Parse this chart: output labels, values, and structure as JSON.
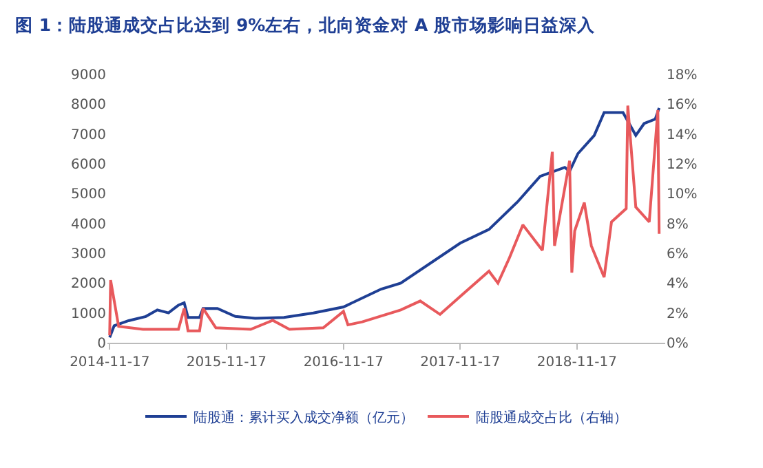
{
  "chart_data": {
    "type": "line",
    "title": "图 1：陆股通成交占比达到 9%左右，北向资金对 A 股市场影响日益深入",
    "xlim": [
      "2014-11-10",
      "2019-08-20"
    ],
    "xticks": [
      {
        "value": "2014-11-17",
        "label": "2014-11-17"
      },
      {
        "value": "2015-11-17",
        "label": "2015-11-17"
      },
      {
        "value": "2016-11-17",
        "label": "2016-11-17"
      },
      {
        "value": "2017-11-17",
        "label": "2017-11-17"
      },
      {
        "value": "2018-11-17",
        "label": "2018-11-17"
      }
    ],
    "ylim": [
      0,
      9000
    ],
    "yticks": [
      0,
      1000,
      2000,
      3000,
      4000,
      5000,
      6000,
      7000,
      8000,
      9000
    ],
    "y2lim": [
      0,
      18
    ],
    "y2ticks": [
      {
        "value": 0,
        "label": "0%"
      },
      {
        "value": 2,
        "label": "2%"
      },
      {
        "value": 4,
        "label": "4%"
      },
      {
        "value": 6,
        "label": "6%"
      },
      {
        "value": 8,
        "label": "8%"
      },
      {
        "value": 10,
        "label": "10%"
      },
      {
        "value": 12,
        "label": "12%"
      },
      {
        "value": 14,
        "label": "14%"
      },
      {
        "value": 16,
        "label": "16%"
      },
      {
        "value": 18,
        "label": "18%"
      }
    ],
    "legend": "bottom",
    "marker": "none",
    "line_style": "solid",
    "series": [
      {
        "name": "陆股通：累计买入成交净额（亿元）",
        "color": "#1f3f94",
        "x": [
          "2014-11-17",
          "2014-12-01",
          "2015-01-15",
          "2015-03-10",
          "2015-04-15",
          "2015-05-20",
          "2015-06-20",
          "2015-07-08",
          "2015-07-20",
          "2015-08-25",
          "2015-09-05",
          "2015-10-20",
          "2015-12-15",
          "2016-02-15",
          "2016-05-15",
          "2016-08-15",
          "2016-11-17",
          "2017-01-15",
          "2017-03-15",
          "2017-05-15",
          "2017-11-17",
          "2018-02-15",
          "2018-05-15",
          "2018-07-25",
          "2018-10-10",
          "2018-10-25",
          "2018-11-20",
          "2019-01-10",
          "2019-02-10",
          "2019-04-10",
          "2019-05-20",
          "2019-06-15",
          "2019-07-20",
          "2019-08-01"
        ],
        "values": [
          180,
          570,
          740,
          880,
          1100,
          1000,
          1260,
          1340,
          850,
          850,
          1150,
          1150,
          880,
          820,
          850,
          1000,
          1200,
          1500,
          1800,
          2000,
          3340,
          3800,
          4720,
          5580,
          5880,
          5750,
          6340,
          6950,
          7720,
          7720,
          6950,
          7350,
          7500,
          7870
        ]
      },
      {
        "name": "陆股通成交占比（右轴）",
        "color": "#e8595c",
        "axis": "y2",
        "x": [
          "2014-11-17",
          "2014-11-20",
          "2014-12-15",
          "2015-03-01",
          "2015-06-20",
          "2015-07-08",
          "2015-07-20",
          "2015-08-25",
          "2015-09-05",
          "2015-10-15",
          "2016-02-01",
          "2016-04-10",
          "2016-06-01",
          "2016-09-15",
          "2016-11-17",
          "2016-12-01",
          "2017-01-15",
          "2017-05-15",
          "2017-07-15",
          "2017-09-15",
          "2017-11-17",
          "2018-02-15",
          "2018-03-15",
          "2018-04-20",
          "2018-06-01",
          "2018-08-01",
          "2018-09-01",
          "2018-09-08",
          "2018-10-25",
          "2018-11-01",
          "2018-11-10",
          "2018-12-10",
          "2019-01-01",
          "2019-02-10",
          "2019-03-05",
          "2019-04-20",
          "2019-04-25",
          "2019-05-20",
          "2019-07-01",
          "2019-07-28",
          "2019-08-01"
        ],
        "values": [
          0.5,
          4.2,
          1.1,
          0.9,
          0.9,
          2.3,
          0.8,
          0.8,
          2.3,
          1.0,
          0.9,
          1.5,
          0.9,
          1.0,
          2.1,
          1.2,
          1.4,
          2.2,
          2.8,
          1.9,
          3.1,
          4.8,
          4.0,
          5.7,
          7.9,
          6.2,
          12.8,
          6.5,
          12.2,
          4.7,
          7.5,
          9.4,
          6.5,
          4.4,
          8.1,
          9.0,
          15.9,
          9.1,
          8.1,
          15.6,
          7.3
        ]
      }
    ]
  }
}
